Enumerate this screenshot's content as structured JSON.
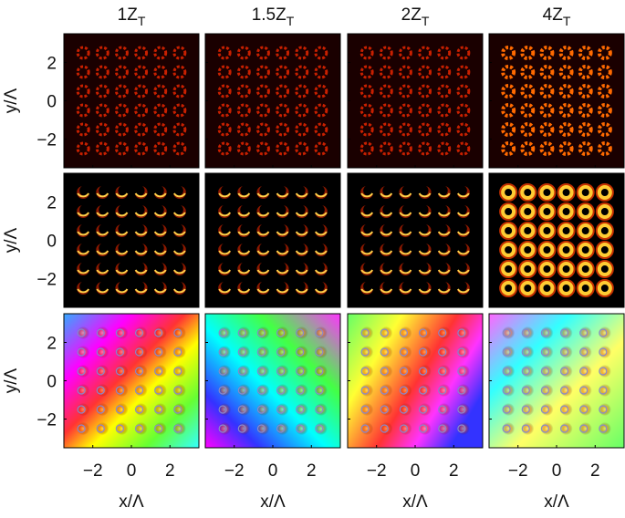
{
  "figure": {
    "columns": [
      {
        "main": "1Z",
        "sub": "T"
      },
      {
        "main": "1.5Z",
        "sub": "T"
      },
      {
        "main": "2Z",
        "sub": "T"
      },
      {
        "main": "4Z",
        "sub": "T"
      }
    ],
    "ylabel": "y/Λ",
    "yticks": [
      2,
      0,
      -2
    ],
    "xlabel": "x/Λ",
    "xticks": [
      -2,
      0,
      2
    ],
    "lim": [
      -3.5,
      3.5
    ]
  }
}
